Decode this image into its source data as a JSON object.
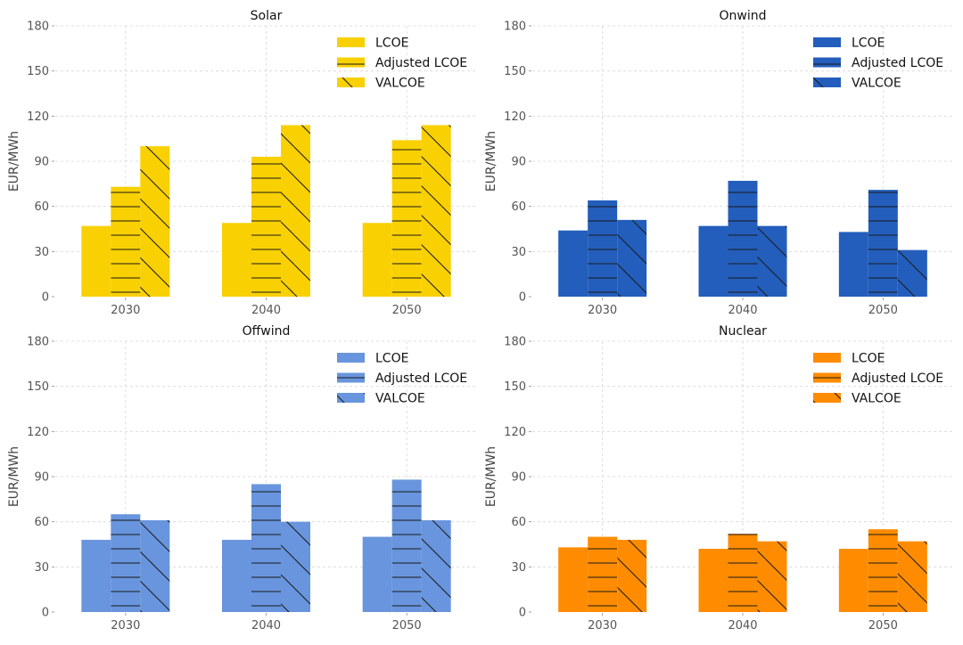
{
  "chart_data": [
    {
      "type": "bar",
      "title": "Solar",
      "ylabel": "EUR/MWh",
      "categories": [
        "2030",
        "2040",
        "2050"
      ],
      "ylim": [
        0,
        180
      ],
      "yticks": [
        0,
        30,
        60,
        90,
        120,
        150,
        180
      ],
      "grid": true,
      "legend": "top-right",
      "color": "#f9d002",
      "series": [
        {
          "name": "LCOE",
          "hatch": "none",
          "values": [
            47,
            49,
            49
          ]
        },
        {
          "name": "Adjusted LCOE",
          "hatch": "horizontal",
          "values": [
            73,
            93,
            104
          ]
        },
        {
          "name": "VALCOE",
          "hatch": "diagonal",
          "values": [
            100,
            114,
            114
          ]
        }
      ]
    },
    {
      "type": "bar",
      "title": "Onwind",
      "ylabel": "EUR/MWh",
      "categories": [
        "2030",
        "2040",
        "2050"
      ],
      "ylim": [
        0,
        180
      ],
      "yticks": [
        0,
        30,
        60,
        90,
        120,
        150,
        180
      ],
      "grid": true,
      "legend": "top-right",
      "color": "#235ebc",
      "series": [
        {
          "name": "LCOE",
          "hatch": "none",
          "values": [
            44,
            47,
            43
          ]
        },
        {
          "name": "Adjusted LCOE",
          "hatch": "horizontal",
          "values": [
            64,
            77,
            71
          ]
        },
        {
          "name": "VALCOE",
          "hatch": "diagonal",
          "values": [
            51,
            47,
            31
          ]
        }
      ]
    },
    {
      "type": "bar",
      "title": "Offwind",
      "ylabel": "EUR/MWh",
      "categories": [
        "2030",
        "2040",
        "2050"
      ],
      "ylim": [
        0,
        180
      ],
      "yticks": [
        0,
        30,
        60,
        90,
        120,
        150,
        180
      ],
      "grid": true,
      "legend": "top-right",
      "color": "#6895dd",
      "series": [
        {
          "name": "LCOE",
          "hatch": "none",
          "values": [
            48,
            48,
            50
          ]
        },
        {
          "name": "Adjusted LCOE",
          "hatch": "horizontal",
          "values": [
            65,
            85,
            88
          ]
        },
        {
          "name": "VALCOE",
          "hatch": "diagonal",
          "values": [
            61,
            60,
            61
          ]
        }
      ]
    },
    {
      "type": "bar",
      "title": "Nuclear",
      "ylabel": "EUR/MWh",
      "categories": [
        "2030",
        "2040",
        "2050"
      ],
      "ylim": [
        0,
        180
      ],
      "yticks": [
        0,
        30,
        60,
        90,
        120,
        150,
        180
      ],
      "grid": true,
      "legend": "top-right",
      "color": "#ff8c00",
      "series": [
        {
          "name": "LCOE",
          "hatch": "none",
          "values": [
            43,
            42,
            42
          ]
        },
        {
          "name": "Adjusted LCOE",
          "hatch": "horizontal",
          "values": [
            50,
            52,
            55
          ]
        },
        {
          "name": "VALCOE",
          "hatch": "diagonal",
          "values": [
            48,
            47,
            47
          ]
        }
      ]
    }
  ]
}
